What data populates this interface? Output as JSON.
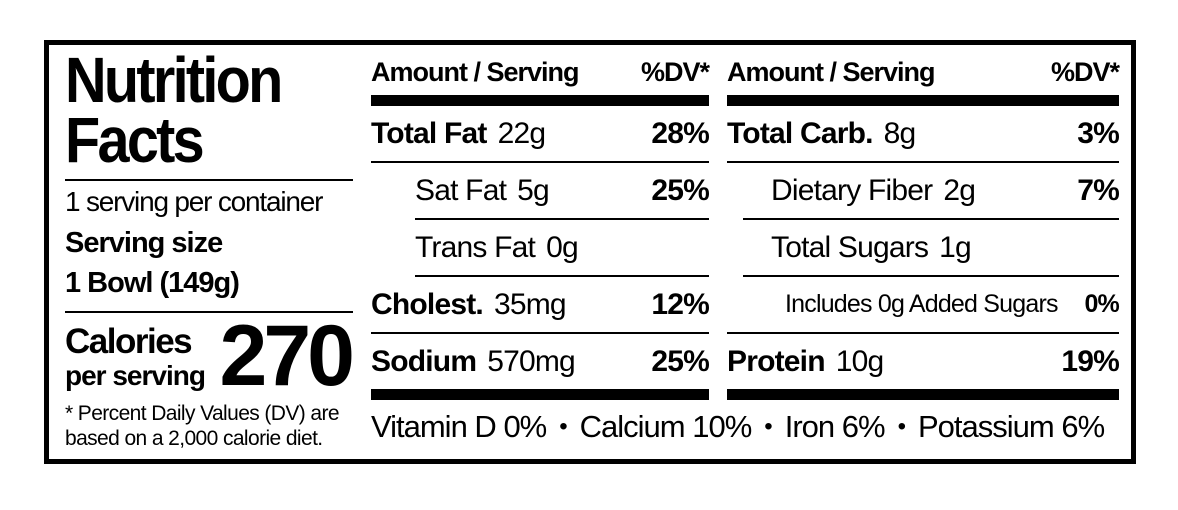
{
  "label": {
    "title": {
      "line1": "Nutrition",
      "line2": "Facts"
    },
    "servings_per_container": "1 serving per container",
    "serving_size": {
      "label": "Serving size",
      "value": "1 Bowl (149g)"
    },
    "calories": {
      "label": "Calories",
      "sublabel": "per serving",
      "value": "270"
    },
    "footnote": {
      "line1": "* Percent Daily Values (DV) are",
      "line2": "based on a 2,000 calorie diet."
    }
  },
  "nutrient_table": {
    "column_header": {
      "amount": "Amount / Serving",
      "dv": "%DV*"
    },
    "left_column": [
      {
        "name": "Total Fat",
        "amount": "22g",
        "dv": "28%"
      },
      {
        "name": "Sat Fat",
        "amount": "5g",
        "dv": "25%"
      },
      {
        "name": "Trans Fat",
        "amount": "0g",
        "dv": ""
      },
      {
        "name": "Cholest.",
        "amount": "35mg",
        "dv": "12%"
      },
      {
        "name": "Sodium",
        "amount": "570mg",
        "dv": "25%"
      }
    ],
    "right_column": [
      {
        "name": "Total Carb.",
        "amount": "8g",
        "dv": "3%"
      },
      {
        "name": "Dietary Fiber",
        "amount": "2g",
        "dv": "7%"
      },
      {
        "name": "Total Sugars",
        "amount": "1g",
        "dv": ""
      },
      {
        "name": "Includes 0g Added Sugars",
        "amount": "",
        "dv": "0%"
      },
      {
        "name": "Protein",
        "amount": "10g",
        "dv": "19%"
      }
    ]
  },
  "micronutrients": {
    "bullet": "•",
    "items": [
      {
        "name": "Vitamin D",
        "value": "0%"
      },
      {
        "name": "Calcium",
        "value": "10%"
      },
      {
        "name": "Iron",
        "value": "6%"
      },
      {
        "name": "Potassium",
        "value": "6%"
      }
    ]
  },
  "colors": {
    "ink": "#000000",
    "paper": "#ffffff"
  }
}
